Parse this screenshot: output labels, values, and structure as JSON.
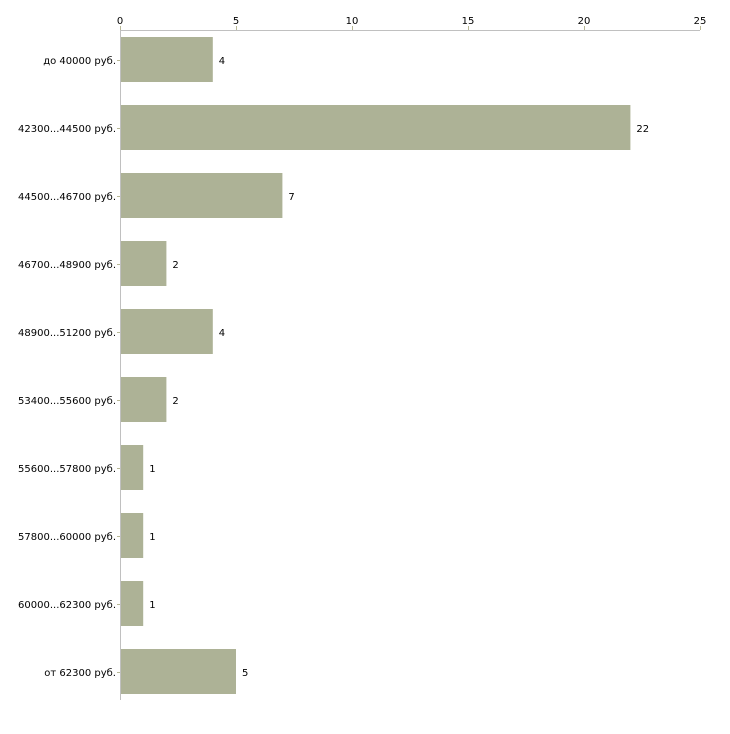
{
  "chart_data": {
    "type": "bar",
    "orientation": "horizontal",
    "title": "",
    "xlabel": "",
    "ylabel": "",
    "xlim": [
      0,
      25
    ],
    "x_ticks": [
      "0",
      "5",
      "10",
      "15",
      "20",
      "25"
    ],
    "categories": [
      "до 40000 руб.",
      "42300...44500 руб.",
      "44500...46700 руб.",
      "46700...48900 руб.",
      "48900...51200 руб.",
      "53400...55600 руб.",
      "55600...57800 руб.",
      "57800...60000 руб.",
      "60000...62300 руб.",
      "от 62300 руб."
    ],
    "values": [
      4,
      22,
      7,
      2,
      4,
      2,
      1,
      1,
      1,
      5
    ],
    "value_labels": [
      "4",
      "22",
      "7",
      "2",
      "4",
      "2",
      "1",
      "1",
      "1",
      "5"
    ],
    "grid": false,
    "legend": "none",
    "colors": {
      "bar": "#adb296",
      "axis": "#c0c0c0",
      "tick": "#b8b896"
    }
  }
}
